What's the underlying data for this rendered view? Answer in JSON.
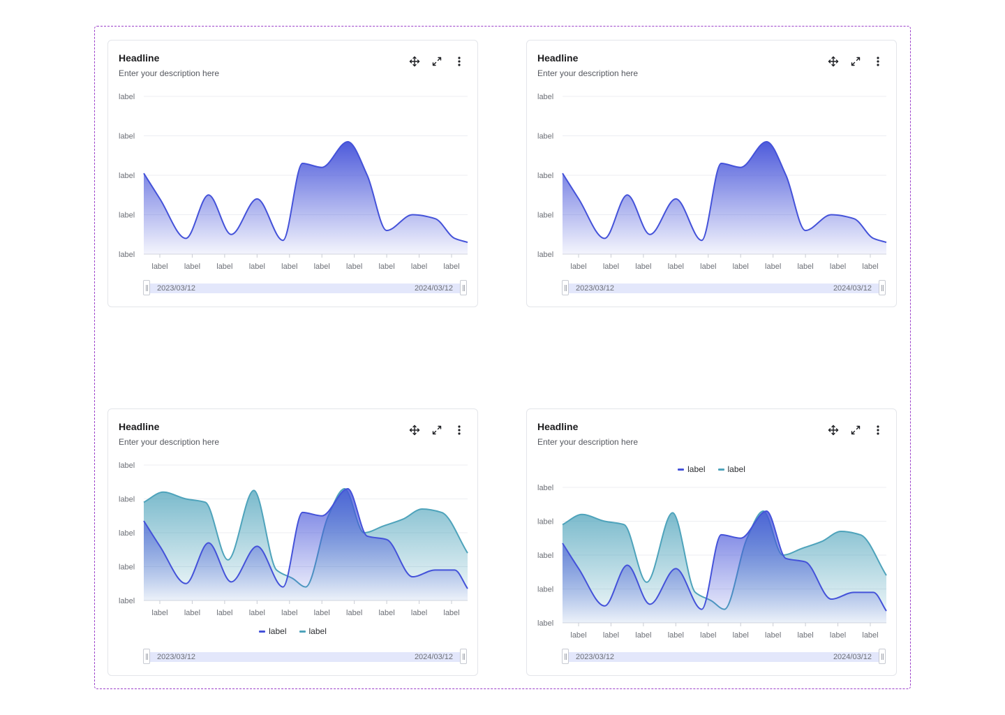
{
  "colors": {
    "primary": "#4452d9",
    "secondary": "#4ea3bb",
    "border": "#e3e5ea",
    "frame": "#9b3fc9"
  },
  "icons": {
    "move": "move-arrows-icon",
    "expand": "expand-icon",
    "more": "more-vertical-icon"
  },
  "cards": [
    {
      "title": "Headline",
      "description": "Enter your description here",
      "legend": [],
      "range_start": "2023/03/12",
      "range_end": "2024/03/12"
    },
    {
      "title": "Headline",
      "description": "Enter your description here",
      "legend": [],
      "range_start": "2023/03/12",
      "range_end": "2024/03/12"
    },
    {
      "title": "Headline",
      "description": "Enter your description here",
      "legend": [
        "label",
        "label"
      ],
      "range_start": "2023/03/12",
      "range_end": "2024/03/12"
    },
    {
      "title": "Headline",
      "description": "Enter your description here",
      "legend": [
        "label",
        "label"
      ],
      "range_start": "2023/03/12",
      "range_end": "2024/03/12"
    }
  ],
  "chart_data": [
    {
      "type": "area",
      "yticks": [
        "label",
        "label",
        "label",
        "label",
        "label"
      ],
      "categories": [
        "label",
        "label",
        "label",
        "label",
        "label",
        "label",
        "label",
        "label",
        "label",
        "label"
      ],
      "ylim": [
        0,
        4
      ],
      "grid": true,
      "series": [
        {
          "color": "#4452d9",
          "x": [
            0,
            0.5,
            1.3,
            2.0,
            2.7,
            3.5,
            4.3,
            4.9,
            5.5,
            6.3,
            6.9,
            7.5,
            8.3,
            9.0,
            9.6,
            10.0
          ],
          "y": [
            2.05,
            1.4,
            0.4,
            1.5,
            0.5,
            1.4,
            0.35,
            2.3,
            2.2,
            2.85,
            2.0,
            0.6,
            1.0,
            0.9,
            0.4,
            0.3
          ]
        }
      ]
    },
    {
      "type": "area",
      "yticks": [
        "label",
        "label",
        "label",
        "label",
        "label"
      ],
      "categories": [
        "label",
        "label",
        "label",
        "label",
        "label",
        "label",
        "label",
        "label",
        "label",
        "label"
      ],
      "ylim": [
        0,
        4
      ],
      "grid": true,
      "series": [
        {
          "color": "#4452d9",
          "x": [
            0,
            0.5,
            1.3,
            2.0,
            2.7,
            3.5,
            4.3,
            4.9,
            5.5,
            6.3,
            6.9,
            7.5,
            8.3,
            9.0,
            9.6,
            10.0
          ],
          "y": [
            2.05,
            1.4,
            0.4,
            1.5,
            0.5,
            1.4,
            0.35,
            2.3,
            2.2,
            2.85,
            2.0,
            0.6,
            1.0,
            0.9,
            0.4,
            0.3
          ]
        }
      ]
    },
    {
      "type": "area",
      "yticks": [
        "label",
        "label",
        "label",
        "label",
        "label"
      ],
      "categories": [
        "label",
        "label",
        "label",
        "label",
        "label",
        "label",
        "label",
        "label",
        "label",
        "label"
      ],
      "ylim": [
        0,
        4
      ],
      "grid": true,
      "legend": "bottom",
      "series": [
        {
          "name": "label",
          "color": "#4452d9",
          "x": [
            0,
            0.5,
            1.3,
            2.0,
            2.7,
            3.5,
            4.3,
            4.9,
            5.5,
            6.3,
            6.9,
            7.5,
            8.3,
            9.0,
            9.6,
            10.0
          ],
          "y": [
            2.35,
            1.6,
            0.5,
            1.7,
            0.55,
            1.6,
            0.4,
            2.6,
            2.5,
            3.3,
            1.9,
            1.8,
            0.7,
            0.9,
            0.9,
            0.35
          ]
        },
        {
          "name": "label",
          "color": "#4ea3bb",
          "x": [
            0,
            0.6,
            1.3,
            1.9,
            2.6,
            3.4,
            4.1,
            4.6,
            5.0,
            5.7,
            6.2,
            6.8,
            7.4,
            8.0,
            8.6,
            9.2,
            10.0
          ],
          "y": [
            2.9,
            3.2,
            3.0,
            2.9,
            1.2,
            3.25,
            0.9,
            0.65,
            0.4,
            2.5,
            3.3,
            2.0,
            2.2,
            2.4,
            2.7,
            2.6,
            1.4
          ]
        }
      ]
    },
    {
      "type": "area",
      "yticks": [
        "label",
        "label",
        "label",
        "label",
        "label"
      ],
      "categories": [
        "label",
        "label",
        "label",
        "label",
        "label",
        "label",
        "label",
        "label",
        "label",
        "label"
      ],
      "ylim": [
        0,
        4
      ],
      "grid": true,
      "legend": "top",
      "series": [
        {
          "name": "label",
          "color": "#4452d9",
          "x": [
            0,
            0.5,
            1.3,
            2.0,
            2.7,
            3.5,
            4.3,
            4.9,
            5.5,
            6.3,
            6.9,
            7.5,
            8.3,
            9.0,
            9.6,
            10.0
          ],
          "y": [
            2.35,
            1.6,
            0.5,
            1.7,
            0.55,
            1.6,
            0.4,
            2.6,
            2.5,
            3.3,
            1.9,
            1.8,
            0.7,
            0.9,
            0.9,
            0.35
          ]
        },
        {
          "name": "label",
          "color": "#4ea3bb",
          "x": [
            0,
            0.6,
            1.3,
            1.9,
            2.6,
            3.4,
            4.1,
            4.6,
            5.0,
            5.7,
            6.2,
            6.8,
            7.4,
            8.0,
            8.6,
            9.2,
            10.0
          ],
          "y": [
            2.9,
            3.2,
            3.0,
            2.9,
            1.2,
            3.25,
            0.9,
            0.65,
            0.4,
            2.5,
            3.3,
            2.0,
            2.2,
            2.4,
            2.7,
            2.6,
            1.4
          ]
        }
      ]
    }
  ]
}
